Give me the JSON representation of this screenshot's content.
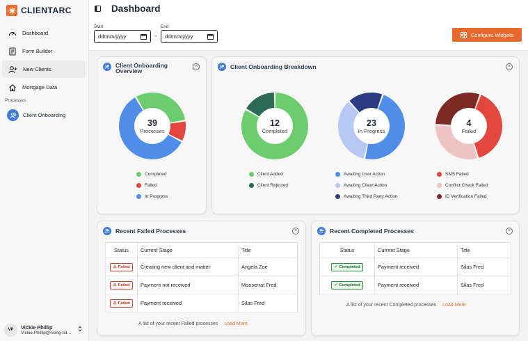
{
  "app": {
    "brand": "CLIENTARC"
  },
  "sidebar": {
    "items": [
      {
        "label": "Dashboard",
        "icon": "dashboard-icon"
      },
      {
        "label": "Form Builder",
        "icon": "form-icon"
      },
      {
        "label": "New Clients",
        "icon": "add-user-icon"
      },
      {
        "label": "Mortgage Data",
        "icon": "home-icon"
      }
    ],
    "section_label": "Processes",
    "process_item": "Client Onboarding"
  },
  "user": {
    "initials": "VP",
    "name": "Vickie Phillip",
    "email": "Vickie.Phillip@rising-tide.com"
  },
  "header": {
    "title": "Dashboard",
    "start_label": "Start",
    "end_label": "End",
    "start_value": "dd/mm/yyyy",
    "end_value": "dd/mm/yyyy",
    "arrow": "→",
    "configure_label": "Configure Widgets"
  },
  "overview": {
    "title_line1": "Client Onboarding",
    "title_line2": "Overview",
    "total": "39",
    "center_label": "Processes",
    "segments": [
      {
        "label": "Completed",
        "value": 12,
        "color": "#6ccd6e"
      },
      {
        "label": "Failed",
        "value": 4,
        "color": "#e2473d"
      },
      {
        "label": "In Progress",
        "value": 23,
        "color": "#4f8de9"
      }
    ]
  },
  "breakdown": {
    "title": "Client Onboarding Breakdown",
    "charts": [
      {
        "total": "12",
        "label": "Completed",
        "segments": [
          {
            "label": "Client Added",
            "value": 10,
            "color": "#6ccd6e"
          },
          {
            "label": "Client Rejected",
            "value": 2,
            "color": "#2d6a55"
          }
        ]
      },
      {
        "total": "23",
        "label": "In Progress",
        "segments": [
          {
            "label": "Awaiting User Action",
            "value": 11,
            "color": "#4f8de9"
          },
          {
            "label": "Awaiting Client Action",
            "value": 8,
            "color": "#b6c7f4"
          },
          {
            "label": "Awaiting Third Party Action",
            "value": 4,
            "color": "#2c3c84"
          }
        ]
      },
      {
        "total": "4",
        "label": "Failed",
        "segments": [
          {
            "label": "SMS Failed",
            "value": 1.6,
            "color": "#e2473d"
          },
          {
            "label": "Conflict Check Failed",
            "value": 1.2,
            "color": "#eec3c3"
          },
          {
            "label": "ID Verification Failed",
            "value": 1.2,
            "color": "#7e2a24"
          }
        ]
      }
    ]
  },
  "failed_panel": {
    "title": "Recent Failed Processes",
    "columns": [
      "Status",
      "Current Stage",
      "Title"
    ],
    "rows": [
      {
        "status": "Failed",
        "stage": "Creating new client and matter",
        "title": "Angela Zoe"
      },
      {
        "status": "Failed",
        "stage": "Payment not received",
        "title": "Monserrat Fred"
      },
      {
        "status": "Failed",
        "stage": "Payment received",
        "title": "Silas Fred"
      }
    ],
    "footer": "A list of your recent Failed processes",
    "load_more": "Load More"
  },
  "completed_panel": {
    "title": "Recent Completed Processes",
    "columns": [
      "Status",
      "Current Stage",
      "Title"
    ],
    "rows": [
      {
        "status": "Completed",
        "stage": "Payment received",
        "title": "Silas Fred"
      },
      {
        "status": "Completed",
        "stage": "Payment received",
        "title": "Silas Fred"
      }
    ],
    "footer": "A list of your recent Completed processes",
    "load_more": "Load More"
  }
}
